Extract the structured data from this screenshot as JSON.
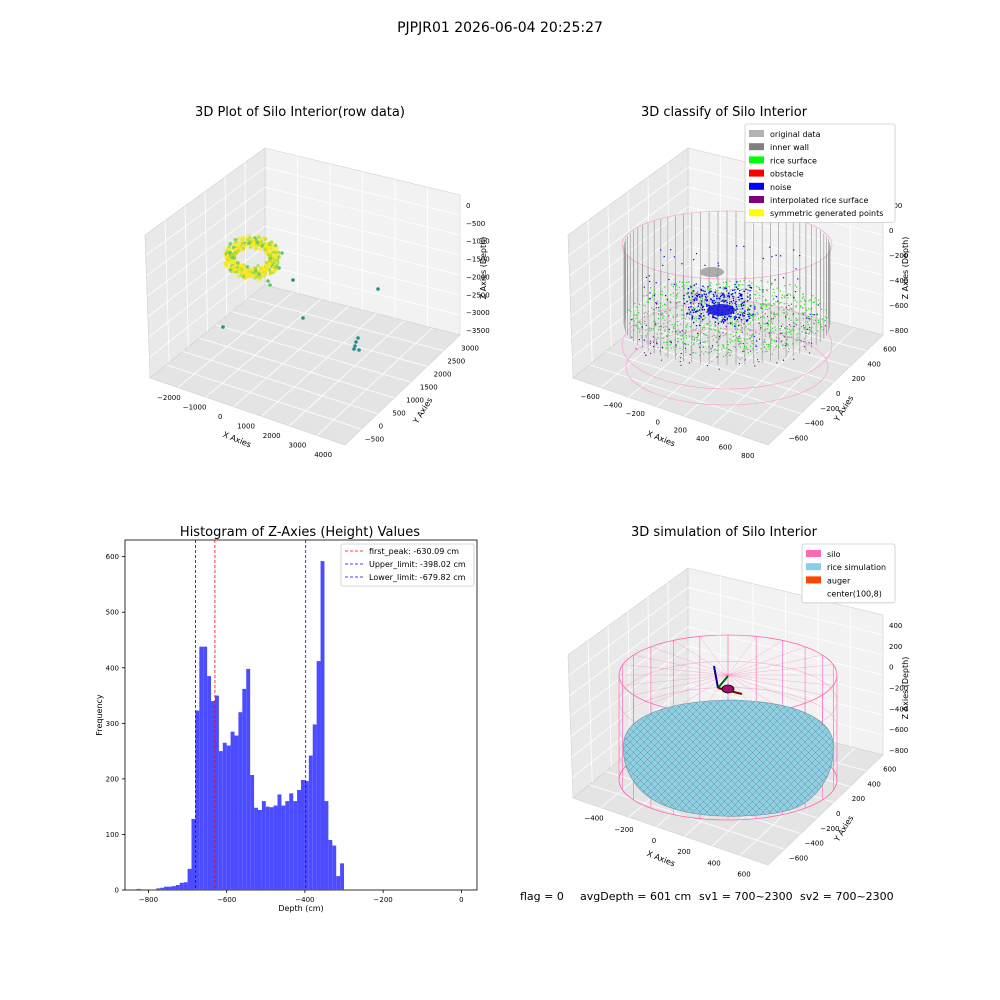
{
  "suptitle": "PJPJR01 2026-06-04 20:25:27",
  "footer": {
    "flag": "flag = 0",
    "avg_depth": "avgDepth = 601 cm",
    "sv1": "sv1 = 700~2300",
    "sv2": "sv2 = 700~2300"
  },
  "chart_data": [
    {
      "id": "raw",
      "type": "scatter",
      "title": "3D Plot of Silo Interior(row data)",
      "xlabel": "X Axies",
      "ylabel": "Y Axies",
      "zlabel": "Z Axies (Depth)",
      "xticks": [
        "−2000",
        "−1000",
        "0",
        "1000",
        "2000",
        "3000",
        "4000"
      ],
      "yticks": [
        "−500",
        "0",
        "500",
        "1000",
        "1500",
        "2000",
        "2500",
        "3000"
      ],
      "zticks": [
        "0",
        "−500",
        "−1000",
        "−1500",
        "−2000",
        "−2500",
        "−3000",
        "−3500"
      ],
      "colormap": [
        "#21908d",
        "#5ec962",
        "#b5de2b",
        "#fde725"
      ]
    },
    {
      "id": "classify",
      "type": "scatter",
      "title": "3D classify of Silo Interior",
      "xlabel": "X Axies",
      "ylabel": "Y Axies",
      "zlabel": "Z Axies (Depth)",
      "xticks": [
        "−600",
        "−400",
        "−200",
        "0",
        "200",
        "400",
        "600",
        "800"
      ],
      "yticks": [
        "−600",
        "−400",
        "−200",
        "0",
        "200",
        "400",
        "600"
      ],
      "zticks": [
        "200",
        "0",
        "−200",
        "−400",
        "−600",
        "−800"
      ],
      "legend_position": "upper-right",
      "legend": [
        {
          "label": "original data",
          "color": "#b3b3b3"
        },
        {
          "label": "inner wall",
          "color": "#808080"
        },
        {
          "label": "rice surface",
          "color": "#00ff00"
        },
        {
          "label": "obstacle",
          "color": "#ff0000"
        },
        {
          "label": "noise",
          "color": "#0000ff"
        },
        {
          "label": "interpolated rice surface",
          "color": "#800080"
        },
        {
          "label": "symmetric generated points",
          "color": "#ffff00"
        }
      ]
    },
    {
      "id": "histogram",
      "type": "bar",
      "title": "Histogram of Z-Axies (Height) Values",
      "xlabel": "Depth (cm)",
      "ylabel": "Frequency",
      "xlim": [
        -860,
        40
      ],
      "ylim": [
        0,
        630
      ],
      "bin_width": 10,
      "bar_color": "#4b4bff",
      "xticks": [
        -800,
        -600,
        -400,
        -200,
        0
      ],
      "xtick_labels": [
        "−800",
        "−600",
        "−400",
        "−200",
        "0"
      ],
      "yticks": [
        0,
        100,
        200,
        300,
        400,
        500,
        600
      ],
      "bins": [
        {
          "start": -830,
          "count": 2
        },
        {
          "start": -800,
          "count": 1
        },
        {
          "start": -780,
          "count": 3
        },
        {
          "start": -770,
          "count": 4
        },
        {
          "start": -760,
          "count": 6
        },
        {
          "start": -750,
          "count": 6
        },
        {
          "start": -740,
          "count": 7
        },
        {
          "start": -730,
          "count": 9
        },
        {
          "start": -720,
          "count": 13
        },
        {
          "start": -710,
          "count": 14
        },
        {
          "start": -700,
          "count": 38
        },
        {
          "start": -690,
          "count": 128
        },
        {
          "start": -680,
          "count": 323
        },
        {
          "start": -670,
          "count": 438
        },
        {
          "start": -660,
          "count": 438
        },
        {
          "start": -650,
          "count": 385
        },
        {
          "start": -640,
          "count": 340
        },
        {
          "start": -630,
          "count": 350
        },
        {
          "start": -620,
          "count": 250
        },
        {
          "start": -610,
          "count": 265
        },
        {
          "start": -600,
          "count": 260
        },
        {
          "start": -590,
          "count": 285
        },
        {
          "start": -580,
          "count": 278
        },
        {
          "start": -570,
          "count": 320
        },
        {
          "start": -560,
          "count": 362
        },
        {
          "start": -550,
          "count": 398
        },
        {
          "start": -540,
          "count": 207
        },
        {
          "start": -530,
          "count": 148
        },
        {
          "start": -520,
          "count": 144
        },
        {
          "start": -510,
          "count": 160
        },
        {
          "start": -500,
          "count": 150
        },
        {
          "start": -490,
          "count": 149
        },
        {
          "start": -480,
          "count": 152
        },
        {
          "start": -470,
          "count": 172
        },
        {
          "start": -460,
          "count": 152
        },
        {
          "start": -450,
          "count": 160
        },
        {
          "start": -440,
          "count": 174
        },
        {
          "start": -430,
          "count": 160
        },
        {
          "start": -420,
          "count": 180
        },
        {
          "start": -410,
          "count": 198
        },
        {
          "start": -400,
          "count": 196
        },
        {
          "start": -390,
          "count": 242
        },
        {
          "start": -380,
          "count": 298
        },
        {
          "start": -370,
          "count": 412
        },
        {
          "start": -360,
          "count": 592
        },
        {
          "start": -350,
          "count": 160
        },
        {
          "start": -340,
          "count": 90
        },
        {
          "start": -330,
          "count": 80
        },
        {
          "start": -320,
          "count": 25
        },
        {
          "start": -310,
          "count": 48
        }
      ],
      "vlines": [
        {
          "name": "first_peak",
          "label": "first_peak: -630.09 cm",
          "x": -630.09,
          "color": "#ff0000"
        },
        {
          "name": "upper_limit",
          "label": "Upper_limit: -398.02 cm",
          "x": -398.02,
          "color": "#0000ff"
        },
        {
          "name": "lower_limit",
          "label": "Lower_limit: -679.82 cm",
          "x": -679.82,
          "color": "#0000ff"
        }
      ],
      "legend_position": "upper-right"
    },
    {
      "id": "simulation",
      "type": "scatter",
      "title": "3D simulation of Silo Interior",
      "xlabel": "X Axies",
      "ylabel": "Y Axies",
      "zlabel": "Z Axies (Depth)",
      "xticks": [
        "−400",
        "−200",
        "0",
        "200",
        "400",
        "600"
      ],
      "yticks": [
        "−600",
        "−400",
        "−200",
        "0",
        "200",
        "400",
        "600"
      ],
      "zticks": [
        "400",
        "200",
        "0",
        "−200",
        "−400",
        "−600",
        "−800"
      ],
      "legend_position": "upper-right",
      "legend": [
        {
          "label": "silo",
          "color": "#ff69b4"
        },
        {
          "label": "rice simulation",
          "color": "#87ceeb"
        },
        {
          "label": "auger",
          "color": "#ff4500"
        },
        {
          "label": "center(100,8)",
          "color": "#ffffff"
        }
      ]
    }
  ]
}
